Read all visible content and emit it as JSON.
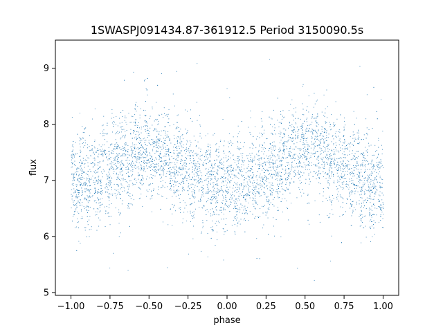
{
  "chart_data": {
    "type": "scatter",
    "title": "1SWASPJ091434.87-361912.5 Period 3150090.5s",
    "xlabel": "phase",
    "ylabel": "flux",
    "xlim": [
      -1.1,
      1.1
    ],
    "ylim": [
      4.95,
      9.5
    ],
    "x_ticks": [
      -1.0,
      -0.75,
      -0.5,
      -0.25,
      0.0,
      0.25,
      0.5,
      0.75,
      1.0
    ],
    "x_tick_labels": [
      "−1.00",
      "−0.75",
      "−0.50",
      "−0.25",
      "0.00",
      "0.25",
      "0.50",
      "0.75",
      "1.00"
    ],
    "y_ticks": [
      5,
      6,
      7,
      8,
      9
    ],
    "y_tick_labels": [
      "5",
      "6",
      "7",
      "8",
      "9"
    ],
    "grid": false,
    "legend": "none",
    "marker_color": "#1f77b4",
    "folded_curve": {
      "phase": [
        0.0,
        0.05,
        0.1,
        0.15,
        0.2,
        0.25,
        0.3,
        0.35,
        0.4,
        0.45,
        0.5,
        0.55,
        0.6,
        0.65,
        0.7,
        0.75,
        0.8,
        0.85,
        0.9,
        0.95,
        1.0
      ],
      "median_flux": [
        6.85,
        6.95,
        6.9,
        7.0,
        7.1,
        7.15,
        7.25,
        7.35,
        7.45,
        7.5,
        7.5,
        7.55,
        7.45,
        7.4,
        7.3,
        7.25,
        7.15,
        7.1,
        7.0,
        6.95,
        6.9
      ],
      "scatter_flux": 0.4,
      "outlier_range": [
        5.15,
        9.2
      ]
    }
  }
}
